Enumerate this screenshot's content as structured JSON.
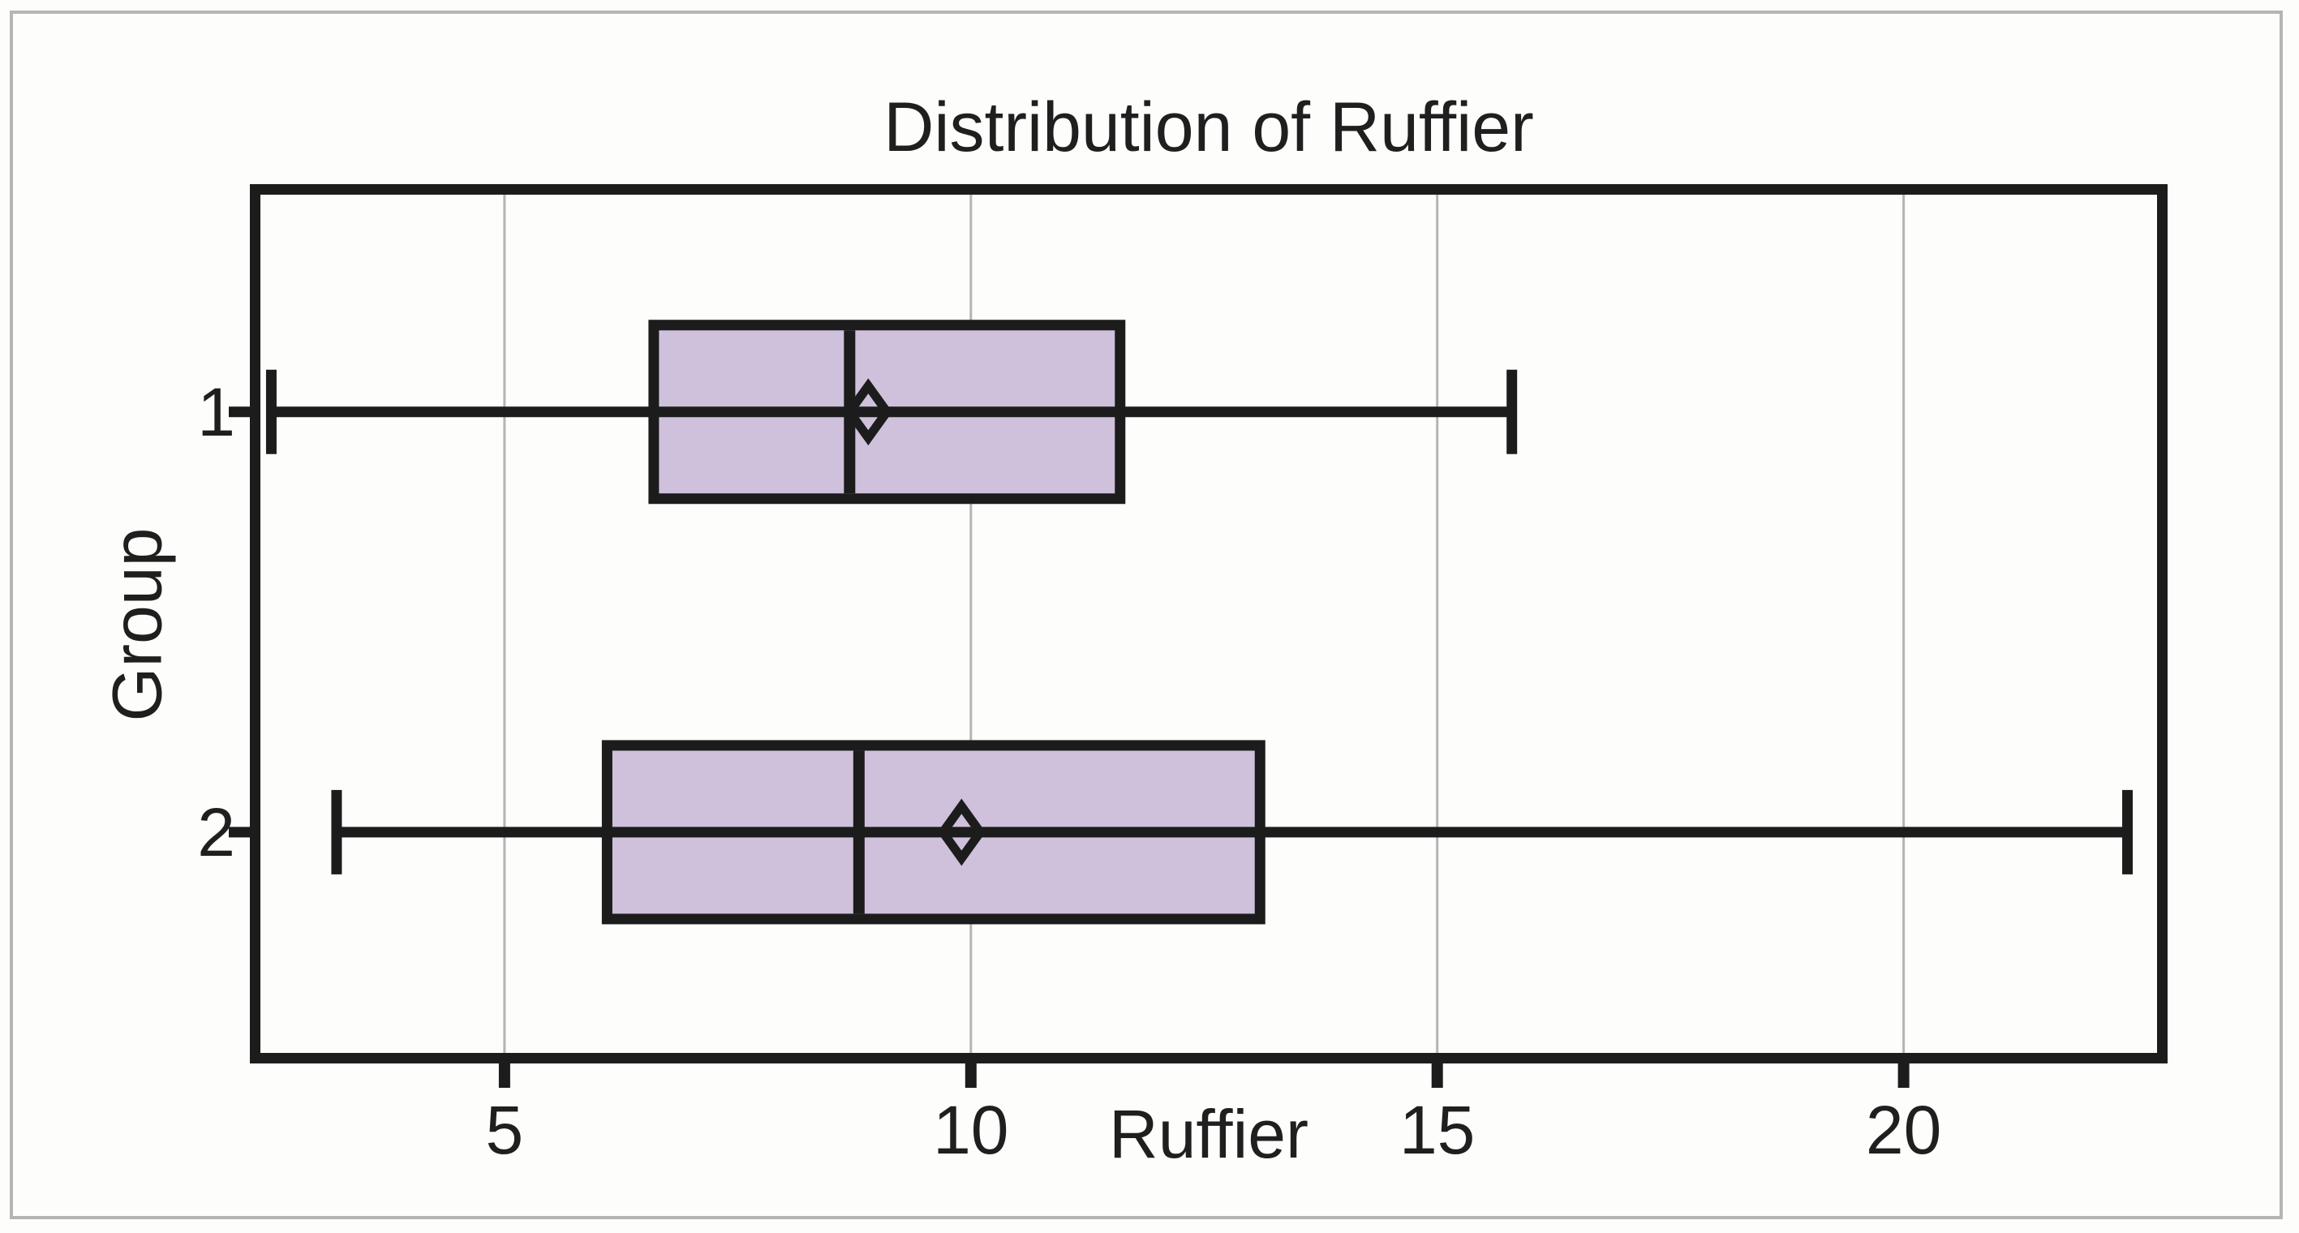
{
  "figure": {
    "background": "#fdfdfb",
    "frame_color": "#b5b5b5"
  },
  "chart_data": {
    "type": "boxplot",
    "orientation": "horizontal",
    "title": "Distribution of Ruffier",
    "xlabel": "Ruffier",
    "ylabel": "Group",
    "x_ticks": [
      5,
      10,
      15,
      20
    ],
    "xlim": [
      2.27,
      22.83
    ],
    "grid": "vertical-gridlines-at-ticks",
    "legend": "none",
    "categories": [
      "1",
      "2"
    ],
    "series": [
      {
        "group": "1",
        "whisker_low": 2.5,
        "q1": 6.6,
        "median": 8.7,
        "mean": 8.9,
        "q3": 11.6,
        "whisker_high": 15.8
      },
      {
        "group": "2",
        "whisker_low": 3.2,
        "q1": 6.1,
        "median": 8.8,
        "mean": 9.9,
        "q3": 13.1,
        "whisker_high": 22.4
      }
    ],
    "colors": {
      "box_fill": "#cfc1db",
      "line": "#1c1c1c",
      "grid": "#b4b4b4"
    }
  }
}
